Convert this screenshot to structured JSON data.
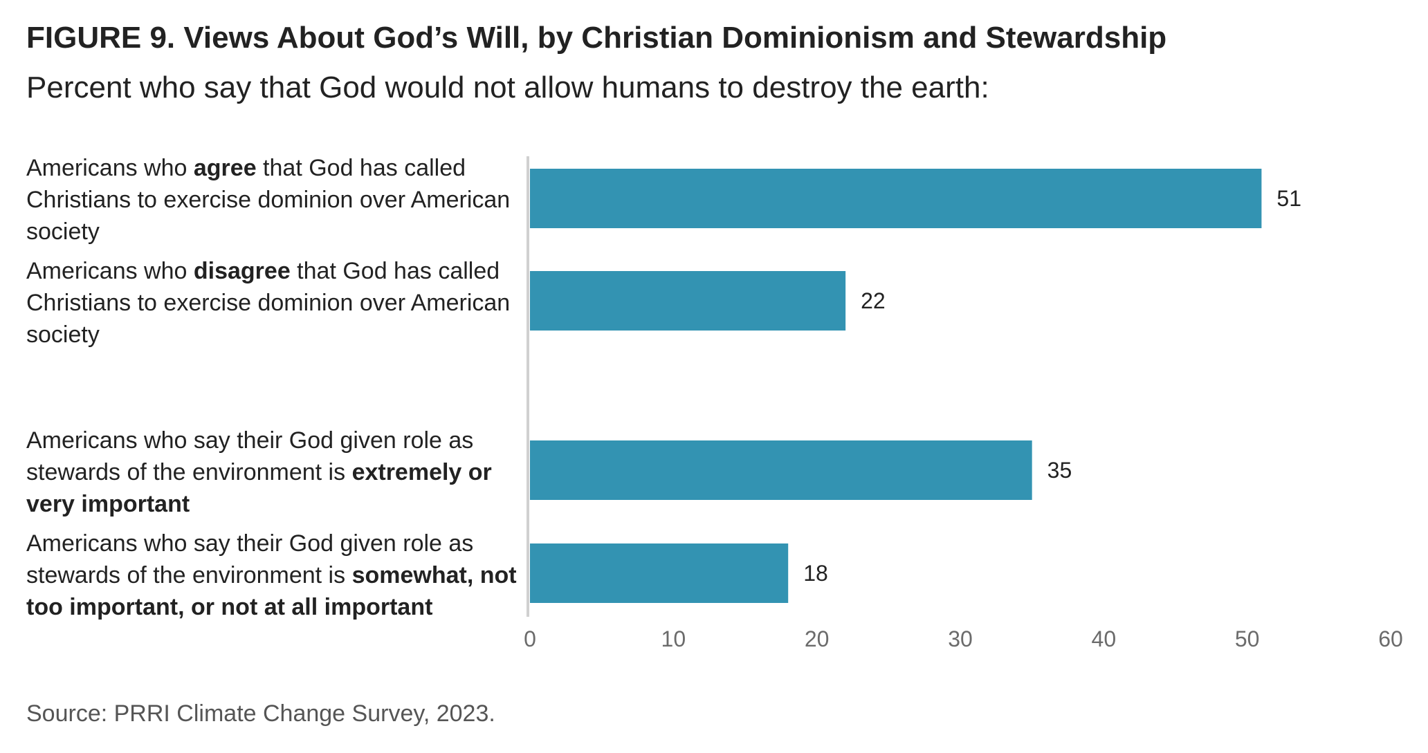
{
  "header": {
    "title": "FIGURE 9.  Views About God’s Will, by Christian Dominionism and Stewardship",
    "subtitle": "Percent who say that God would not allow humans to destroy the earth:"
  },
  "labels": [
    {
      "pre": "Americans who ",
      "bold": "agree",
      "post": " that God has called Christians to exercise dominion over American society"
    },
    {
      "pre": "Americans who ",
      "bold": "disagree",
      "post": " that God has called Christians to exercise dominion over American society"
    },
    {
      "pre": "Americans who say their God given role as stewards of the environment is ",
      "bold": "extremely or very important",
      "post": ""
    },
    {
      "pre": "Americans who say their God given role as stewards of the environment is ",
      "bold": "somewhat, not too important, or not at all important",
      "post": ""
    }
  ],
  "footer": {
    "source": "Source: PRRI Climate Change Survey, 2023."
  },
  "chart_data": {
    "type": "bar",
    "orientation": "horizontal",
    "categories": [
      "Americans who agree that God has called Christians to exercise dominion over American society",
      "Americans who disagree that God has called Christians to exercise dominion over American society",
      "Americans who say their God given role as stewards of the environment is extremely or very important",
      "Americans who say their God given role as stewards of the environment is somewhat, not too important, or not at all important"
    ],
    "values": [
      51,
      22,
      35,
      18
    ],
    "value_labels": [
      "51",
      "22",
      "35",
      "18"
    ],
    "xlim": [
      0,
      60
    ],
    "ticks": [
      0,
      10,
      20,
      30,
      40,
      50,
      60
    ],
    "tick_labels": [
      "0",
      "10",
      "20",
      "30",
      "40",
      "50",
      "60"
    ],
    "grid": false,
    "legend": "none",
    "bar_color": "#3393b2",
    "axis_color": "#d0d0d0"
  }
}
